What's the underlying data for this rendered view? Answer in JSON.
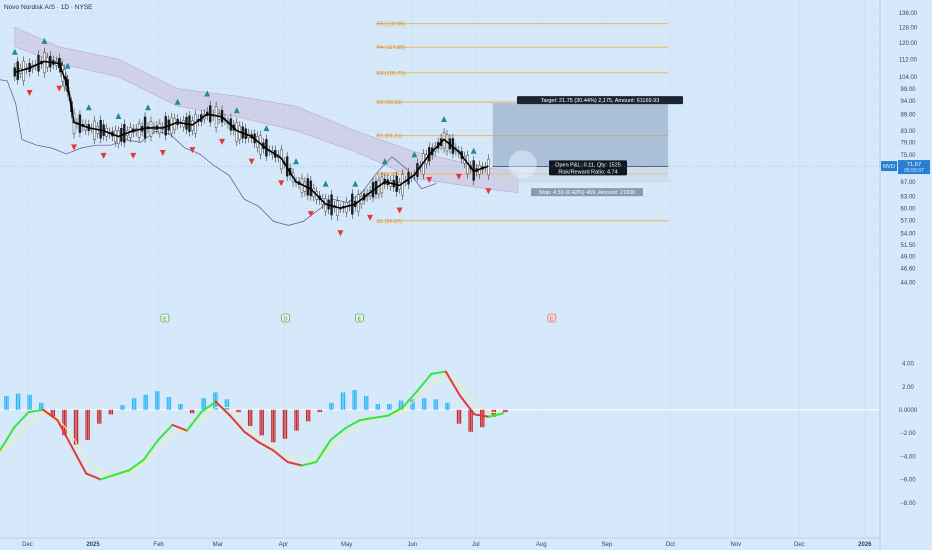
{
  "header": {
    "symbol_title": "Novo Nordisk A/S · 1D · NYSE"
  },
  "colors": {
    "background": "#d6e9fb",
    "price_line": "#000000",
    "cloud": "#c9b4d3",
    "pivot_line": "#f0b45a",
    "up_signal": "#1f8a99",
    "down_signal": "#e53935",
    "macd_pos": "#29b6f6",
    "macd_neg": "#c62828",
    "macd_green": "#39e639",
    "macd_red": "#e53935",
    "signal_yellow": "#f2f28a",
    "target_zone": "#8fa7c2"
  },
  "chart_data": [
    {
      "type": "line",
      "title": "Novo Nordisk A/S · 1D · NYSE",
      "y_scale": "log",
      "ylim": [
        36.0,
        140.0
      ],
      "y_ticks": [
        "136.00",
        "128.00",
        "120.00",
        "112.00",
        "104.00",
        "99.00",
        "94.00",
        "89.00",
        "83.00",
        "79.00",
        "75.00",
        "71.00",
        "67.00",
        "63.00",
        "60.00",
        "57.00",
        "54.00",
        "51.50",
        "49.00",
        "46.60",
        "44.00"
      ],
      "x_ticks": [
        "Dec",
        "2025",
        "Feb",
        "Mar",
        "Apr",
        "May",
        "Jun",
        "Jul",
        "Aug",
        "Sep",
        "Oct",
        "Nov",
        "Dec",
        "2026"
      ],
      "price_series": {
        "name": "NVO",
        "x": [
          "2024-11-25",
          "2024-12-02",
          "2024-12-09",
          "2024-12-16",
          "2024-12-20",
          "2024-12-23",
          "2024-12-30",
          "2025-01-06",
          "2025-01-13",
          "2025-01-20",
          "2025-01-27",
          "2025-02-03",
          "2025-02-10",
          "2025-02-17",
          "2025-02-24",
          "2025-03-03",
          "2025-03-10",
          "2025-03-17",
          "2025-03-24",
          "2025-03-31",
          "2025-04-07",
          "2025-04-14",
          "2025-04-21",
          "2025-04-28",
          "2025-05-05",
          "2025-05-12",
          "2025-05-19",
          "2025-05-26",
          "2025-06-02",
          "2025-06-09",
          "2025-06-16",
          "2025-06-23",
          "2025-06-30",
          "2025-07-07"
        ],
        "y": [
          106,
          108,
          111,
          110,
          100,
          86,
          84,
          83,
          81,
          83,
          84,
          84,
          86,
          85,
          89,
          88,
          83,
          81,
          77,
          74,
          67,
          65,
          61,
          60,
          61,
          64,
          67,
          66,
          69,
          75,
          80,
          76,
          70,
          71.57
        ]
      },
      "ichimoku_upper_x": [
        "2024-11-25",
        "2024-12-16",
        "2025-01-13",
        "2025-02-10",
        "2025-03-10",
        "2025-04-07",
        "2025-05-05",
        "2025-06-02",
        "2025-07-07",
        "2025-07-21"
      ],
      "ichimoku_upper_y": [
        128,
        118,
        112,
        99,
        96,
        92,
        83,
        76,
        71,
        70
      ],
      "ichimoku_lower_y": [
        118,
        110,
        104,
        92,
        88,
        83,
        76,
        68,
        65,
        64
      ],
      "pivots": [
        {
          "label": "R5 (130.05)",
          "value": 130.05
        },
        {
          "label": "R4 (117.80)",
          "value": 117.8
        },
        {
          "label": "R3 (105.75)",
          "value": 105.75
        },
        {
          "label": "R2 (93.59)",
          "value": 93.59
        },
        {
          "label": "R1 (81.31)",
          "value": 81.31
        },
        {
          "label": "P (69.28)",
          "value": 69.28
        },
        {
          "label": "S1 (56.87)",
          "value": 56.87
        }
      ],
      "position": {
        "target_label": "Target: 21.75 (30.44%) 2,175, Amount: 61169.93",
        "stop_label": "Stop: 4.59 (6.42%) 459, Amount: 21000",
        "pnl_label": "Open P&L: 0.11, Qty: 1525",
        "rr_label": "Risk/Reward Ratio: 4.74",
        "entry": 71.46,
        "target": 93.2,
        "stop": 66.9
      },
      "last_price_tag": {
        "symbol": "NVO",
        "price": "71.57",
        "countdown": "05:55:07"
      },
      "event_markers": [
        "E",
        "D",
        "E",
        "E"
      ]
    },
    {
      "type": "bar",
      "title": "",
      "ylim": [
        -9.5,
        5.5
      ],
      "y_ticks": [
        "4.00",
        "2.00",
        "0.0000",
        "−2.00",
        "−4.00",
        "−6.00",
        "−8.00"
      ],
      "histogram": [
        1.2,
        1.4,
        1.3,
        0.6,
        -0.6,
        -2.2,
        -3.0,
        -2.6,
        -1.2,
        -0.4,
        0.4,
        1.0,
        1.3,
        1.6,
        1.1,
        0.5,
        -0.3,
        1.0,
        1.5,
        0.9,
        -0.2,
        -1.4,
        -2.2,
        -2.8,
        -2.5,
        -1.8,
        -1.0,
        -0.2,
        0.6,
        1.5,
        1.7,
        1.2,
        0.5,
        0.5,
        0.8,
        0.9,
        1.0,
        0.9,
        0.6,
        -1.2,
        -1.9,
        -1.5,
        -0.6,
        -0.2
      ],
      "series": [
        {
          "name": "",
          "values": [
            -3.5,
            -1.5,
            -0.2,
            0.0,
            -0.9,
            -3.2,
            -5.5,
            -6.0,
            -5.6,
            -5.2,
            -4.3,
            -2.6,
            -1.3,
            -1.8,
            -0.2,
            0.7,
            -0.5,
            -1.9,
            -2.8,
            -3.5,
            -4.5,
            -4.8,
            -4.5,
            -2.6,
            -1.6,
            -0.9,
            -0.7,
            -0.5,
            0.2,
            1.6,
            3.1,
            3.3,
            1.2,
            -0.4,
            -0.6,
            -0.3
          ]
        },
        {
          "name": "",
          "values": [
            -3.8,
            -2.5,
            -1.2,
            -0.3,
            -0.7,
            -2.2,
            -4.3,
            -5.4,
            -5.6,
            -5.4,
            -4.6,
            -3.3,
            -2.0,
            -1.7,
            -0.9,
            0.2,
            0.2,
            -1.1,
            -2.4,
            -3.2,
            -4.0,
            -4.3,
            -4.3,
            -3.3,
            -2.2,
            -1.4,
            -0.8,
            -0.5,
            -0.1,
            1.0,
            2.2,
            3.0,
            2.1,
            0.5,
            -0.2,
            -0.3
          ]
        }
      ]
    }
  ]
}
